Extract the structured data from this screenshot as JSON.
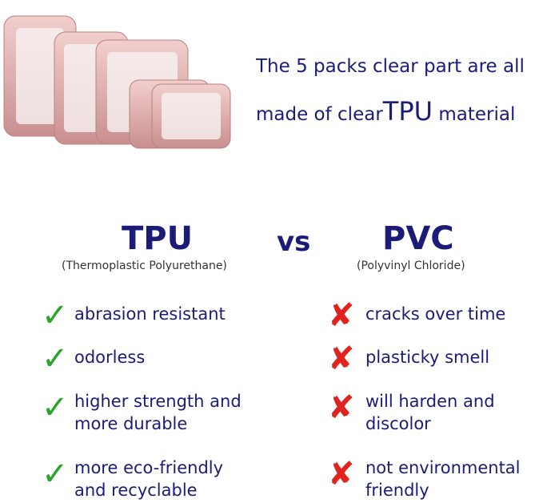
{
  "intro": {
    "line1": "The 5 packs clear part are all",
    "line2_prefix": "made of clear",
    "line2_emph": "TPU",
    "line2_suffix": "material"
  },
  "comparison": {
    "vs": "vs",
    "left": {
      "title": "TPU",
      "subtitle": "(Thermoplastic Polyurethane)",
      "icon": "check-icon",
      "items": [
        [
          "abrasion resistant"
        ],
        [
          "odorless"
        ],
        [
          "higher strength and",
          "more durable"
        ],
        [
          "more eco-friendly",
          "and recyclable"
        ]
      ]
    },
    "right": {
      "title": "PVC",
      "subtitle": "(Polyvinyl Chloride)",
      "icon": "cross-icon",
      "items": [
        [
          "cracks over time"
        ],
        [
          "plasticky smell"
        ],
        [
          "will harden and",
          "discolor"
        ],
        [
          "not environmental",
          "friendly"
        ]
      ]
    }
  },
  "colors": {
    "text": "#1c1c78",
    "check": "#2aa52a",
    "cross": "#e0231c",
    "bags": "#d9a7a6"
  }
}
